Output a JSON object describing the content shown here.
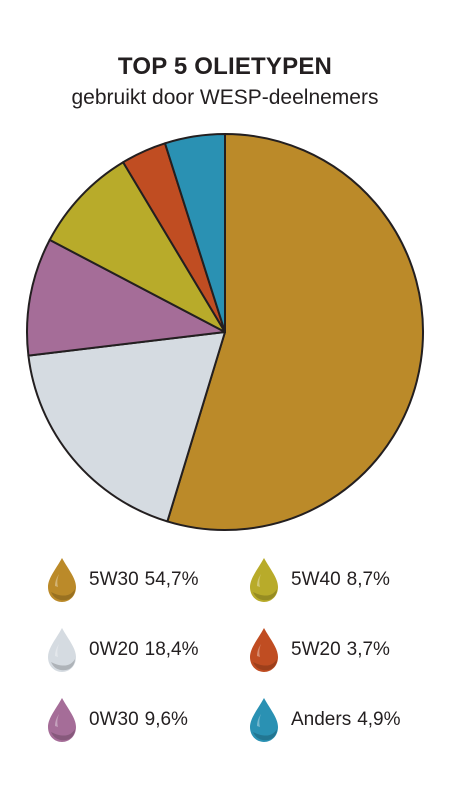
{
  "header": {
    "title": "TOP 5 OLIETYPEN",
    "subtitle": "gebruikt door WESP-deelnemers"
  },
  "chart_data": {
    "type": "pie",
    "title": "TOP 5 OLIETYPEN",
    "subtitle": "gebruikt door WESP-deelnemers",
    "slices": [
      {
        "label": "5W30",
        "value": 54.7,
        "value_label": "54,7%",
        "color": "#bb8a29"
      },
      {
        "label": "0W20",
        "value": 18.4,
        "value_label": "18,4%",
        "color": "#d5dbe1"
      },
      {
        "label": "0W30",
        "value": 9.6,
        "value_label": "9,6%",
        "color": "#a56d98"
      },
      {
        "label": "5W40",
        "value": 8.7,
        "value_label": "8,7%",
        "color": "#b8ab2a"
      },
      {
        "label": "5W20",
        "value": 3.7,
        "value_label": "3,7%",
        "color": "#c04d22"
      },
      {
        "label": "Anders",
        "value": 4.9,
        "value_label": "4,9%",
        "color": "#2a91b3"
      }
    ],
    "start": "12 o'clock",
    "direction": "clockwise",
    "legend_position": "bottom"
  },
  "legend": {
    "items": [
      {
        "label": "5W30",
        "value": "54,7%",
        "color": "#bb8a29"
      },
      {
        "label": "5W40",
        "value": "8,7%",
        "color": "#b8ab2a"
      },
      {
        "label": "0W20",
        "value": "18,4%",
        "color": "#d5dbe1"
      },
      {
        "label": "5W20",
        "value": "3,7%",
        "color": "#c04d22"
      },
      {
        "label": "0W30",
        "value": "9,6%",
        "color": "#a56d98"
      },
      {
        "label": "Anders",
        "value": "4,9%",
        "color": "#2a91b3"
      }
    ]
  }
}
